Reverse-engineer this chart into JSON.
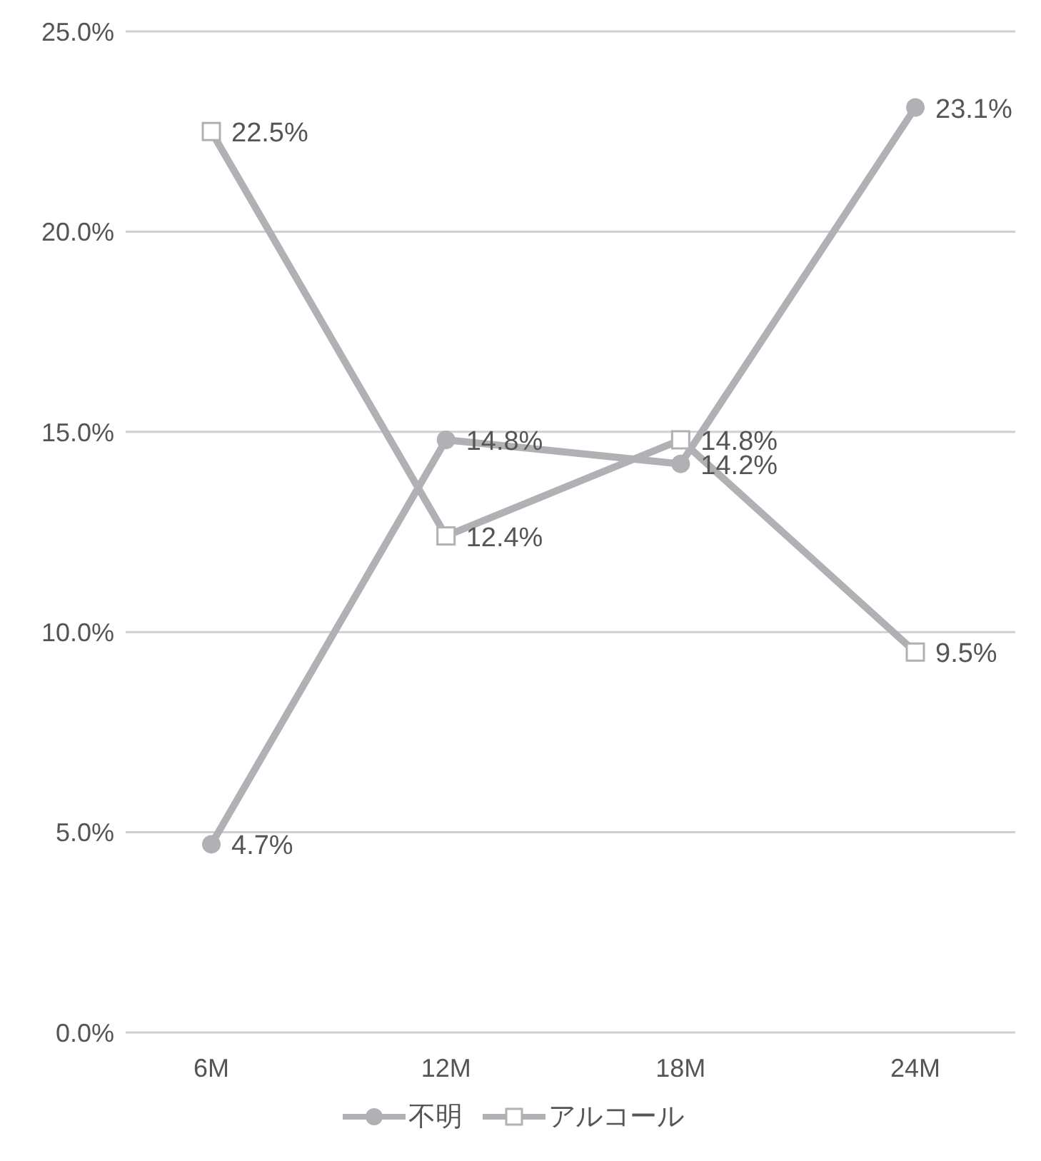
{
  "chart_data": {
    "type": "line",
    "categories": [
      "6M",
      "12M",
      "18M",
      "24M"
    ],
    "series": [
      {
        "name": "不明",
        "color": "#b1b1b5",
        "marker": "circle",
        "values": [
          4.7,
          14.8,
          14.2,
          23.1
        ],
        "value_labels": [
          "4.7%",
          "14.8%",
          "14.2%",
          "23.1%"
        ]
      },
      {
        "name": "アルコール",
        "color": "#b1b1b5",
        "marker": "square",
        "values": [
          22.5,
          12.4,
          14.8,
          9.5
        ],
        "value_labels": [
          "22.5%",
          "12.4%",
          "14.8%",
          "9.5%"
        ]
      }
    ],
    "ylim": [
      0,
      25
    ],
    "yticks": [
      {
        "value": 0,
        "label": "0.0%"
      },
      {
        "value": 5,
        "label": "5.0%"
      },
      {
        "value": 10,
        "label": "10.0%"
      },
      {
        "value": 15,
        "label": "15.0%"
      },
      {
        "value": 20,
        "label": "20.0%"
      },
      {
        "value": 25,
        "label": "25.0%"
      }
    ],
    "grid": "y",
    "legend": "bottom"
  }
}
